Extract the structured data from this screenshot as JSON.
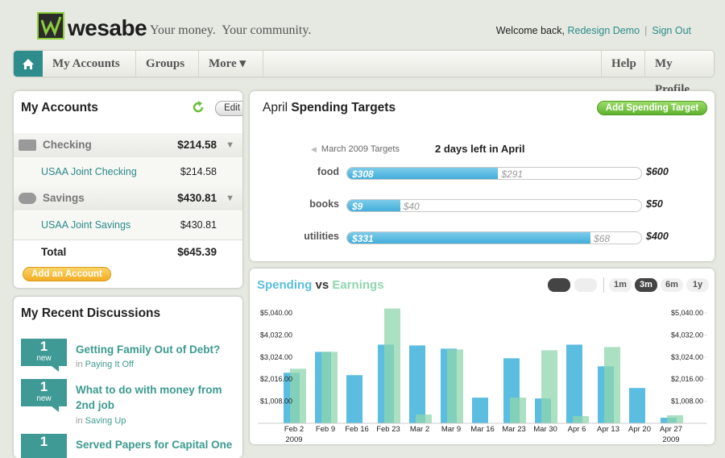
{
  "header": {
    "logo": "wesabe",
    "tagline": "Your money.  Your community.",
    "welcome": "Welcome back,",
    "user": "Redesign Demo",
    "sign_out": "Sign Out"
  },
  "nav": {
    "left": [
      "My Accounts",
      "Groups",
      "More ▾"
    ],
    "right": [
      "Help",
      "My Profile"
    ]
  },
  "accounts": {
    "title": "My Accounts",
    "edit": "Edit",
    "groups": [
      {
        "name": "Checking",
        "total": "$214.58",
        "accounts": [
          {
            "name": "USAA Joint Checking",
            "balance": "$214.58"
          }
        ]
      },
      {
        "name": "Savings",
        "total": "$430.81",
        "accounts": [
          {
            "name": "USAA Joint Savings",
            "balance": "$430.81"
          }
        ]
      }
    ],
    "total_label": "Total",
    "total": "$645.39",
    "add": "Add an Account"
  },
  "discussions": {
    "title": "My Recent Discussions",
    "items": [
      {
        "count": "1",
        "badge": "new",
        "title": "Getting Family Out of Debt?",
        "in": "in",
        "group": "Paying It Off"
      },
      {
        "count": "1",
        "badge": "new",
        "title": "What to do with money from 2nd job",
        "in": "in",
        "group": "Saving Up"
      },
      {
        "count": "1",
        "title": "Served Papers for Capital One"
      }
    ]
  },
  "targets": {
    "month": "April",
    "title": "Spending Targets",
    "add": "Add Spending Target",
    "previous": "March 2009 Targets",
    "days_left": "2 days left in April",
    "rows": [
      {
        "category": "food",
        "spent": 308,
        "spent_label": "$308",
        "remaining": 291,
        "remaining_label": "$291",
        "target": 600,
        "target_label": "$600"
      },
      {
        "category": "books",
        "spent": 9,
        "spent_label": "$9",
        "remaining": 40,
        "remaining_label": "$40",
        "target": 50,
        "target_label": "$50"
      },
      {
        "category": "utilities",
        "spent": 331,
        "spent_label": "$331",
        "remaining": 68,
        "remaining_label": "$68",
        "target": 400,
        "target_label": "$400"
      }
    ]
  },
  "chart_data": {
    "type": "bar",
    "title_spending": "Spending",
    "title_vs": "vs",
    "title_earnings": "Earnings",
    "ranges": [
      "1m",
      "3m",
      "6m",
      "1y"
    ],
    "categories": [
      "Feb 2\n2009",
      "Feb 9",
      "Feb 16",
      "Feb 23",
      "Mar 2",
      "Mar 9",
      "Mar 16",
      "Mar 23",
      "Mar 30",
      "Apr 6",
      "Apr 13",
      "Apr 20",
      "Apr 27\n2009"
    ],
    "series": [
      {
        "name": "Spending",
        "color": "#5bbde0",
        "values": [
          2309,
          3262,
          2199,
          3592,
          3555,
          3408,
          1173,
          2969,
          1136,
          3592,
          2602,
          1613,
          256
        ]
      },
      {
        "name": "Earnings",
        "color": "#8fd6ad",
        "values": [
          2492,
          3262,
          0,
          5241,
          403,
          3372,
          0,
          1173,
          3335,
          330,
          3482,
          0,
          367
        ]
      }
    ],
    "ylim": [
      0,
      5300
    ],
    "yticks": [
      {
        "value": 1008,
        "label": "$1,008.00"
      },
      {
        "value": 2016,
        "label": "$2,016.00"
      },
      {
        "value": 3024,
        "label": "$3,024.00"
      },
      {
        "value": 4032,
        "label": "$4,032.00"
      },
      {
        "value": 5040,
        "label": "$5,040.00"
      }
    ],
    "y2lim": [
      0,
      5300
    ],
    "y2ticks": [
      {
        "value": 1008,
        "label": "$1,008.00"
      },
      {
        "value": 2016,
        "label": "$2,016.00"
      },
      {
        "value": 3024,
        "label": "$3,024.00"
      },
      {
        "value": 4032,
        "label": "$4,032.00"
      },
      {
        "value": 5040,
        "label": "$5,040.00"
      }
    ]
  }
}
